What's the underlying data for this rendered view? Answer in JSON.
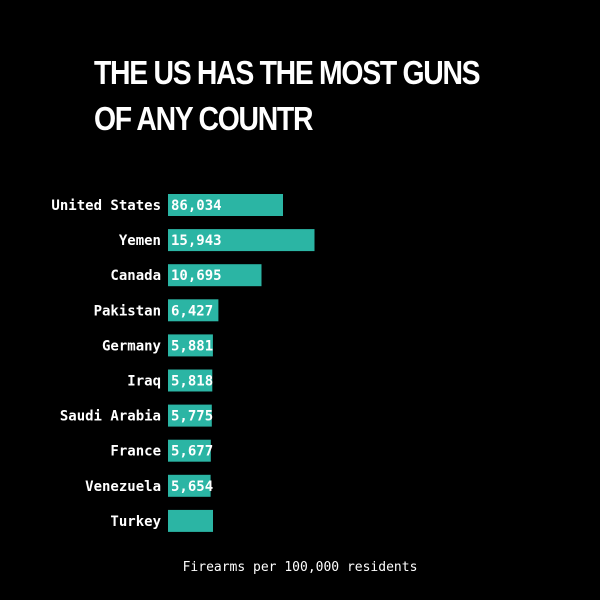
{
  "title": "THE US HAS THE MOST GUNS OF ANY COUNTR",
  "caption": "Firearms per 100,000 residents",
  "colors": {
    "background": "#000000",
    "bar": "#2bb5a4",
    "text": "#ffffff"
  },
  "chart_data": {
    "type": "bar",
    "orientation": "horizontal",
    "title": "THE US HAS THE MOST GUNS OF ANY COUNTR",
    "xlabel": "Firearms per 100,000 residents",
    "ylabel": "",
    "categories": [
      "United States",
      "Yemen",
      "Canada",
      "Pakistan",
      "Germany",
      "Iraq",
      "Saudi Arabia",
      "France",
      "Venezuela",
      "Turkey"
    ],
    "values": [
      86034,
      15943,
      10695,
      6427,
      5881,
      5818,
      5775,
      5677,
      5654,
      null
    ],
    "value_labels": [
      "86,034",
      "15,943",
      "10,695",
      "6,427",
      "5,881",
      "5,818",
      "5,775",
      "5,677",
      "5,654",
      ""
    ],
    "grid": false,
    "legend": "none"
  }
}
